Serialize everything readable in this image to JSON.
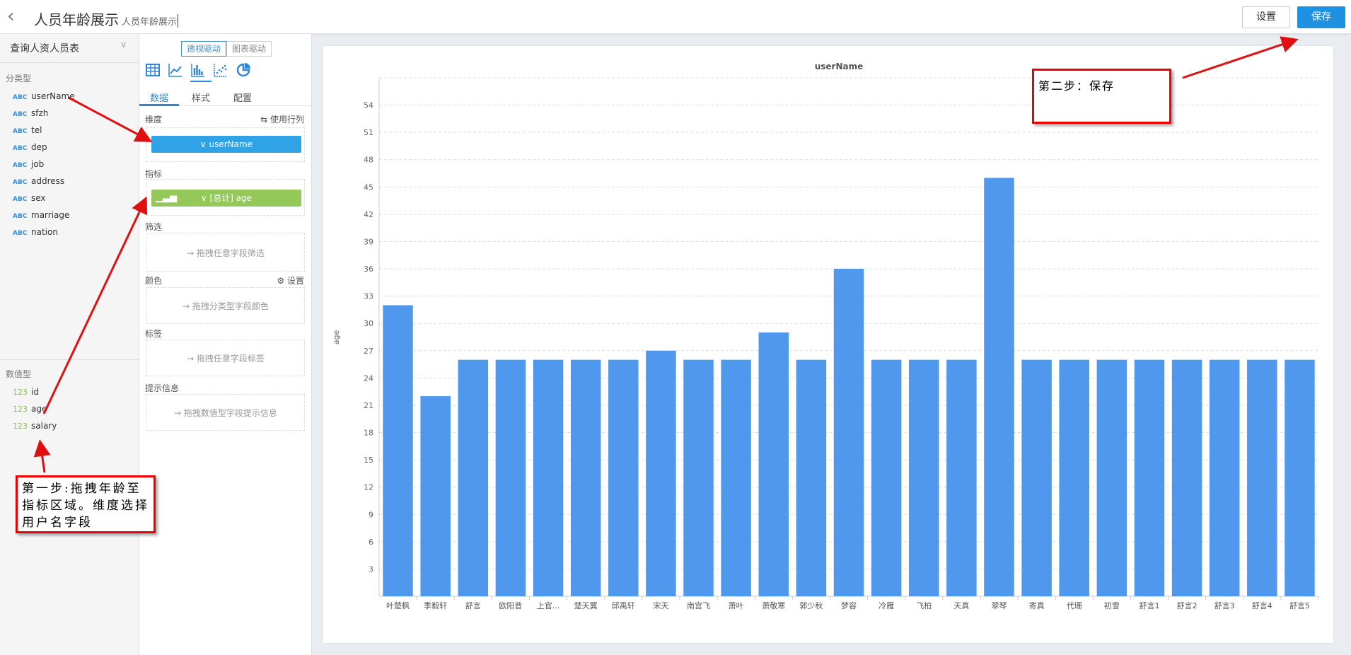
{
  "header": {
    "title": "人员年龄展示",
    "subtitle": "人员年龄展示",
    "settings_label": "设置",
    "save_label": "保存"
  },
  "left": {
    "dataset": "查询人资人员表",
    "category_section": "分类型",
    "category_type": "ABC",
    "category_fields": [
      "userName",
      "sfzh",
      "tel",
      "dep",
      "job",
      "address",
      "sex",
      "marriage",
      "nation"
    ],
    "numeric_section": "数值型",
    "numeric_type": "123",
    "numeric_fields": [
      "id",
      "age",
      "salary"
    ]
  },
  "mid": {
    "modes": [
      "透视驱动",
      "图表驱动"
    ],
    "chart_types": [
      "table-icon",
      "line-chart-icon",
      "bar-chart-icon",
      "scatter-icon",
      "pie-chart-icon"
    ],
    "tabs": [
      "数据",
      "样式",
      "配置"
    ],
    "dimension_label": "维度",
    "use_row_col": "⇆ 使用行列",
    "dimension_value": "∨ userName",
    "measure_label": "指标",
    "measure_value": "∨ [总计] age",
    "filter_label": "筛选",
    "filter_hint": "→ 拖拽任意字段筛选",
    "color_label": "颜色",
    "color_settings": "设置",
    "color_hint": "→ 拖拽分类型字段颜色",
    "tag_label": "标签",
    "tag_hint": "→ 拖拽任意字段标签",
    "tooltip_label": "提示信息",
    "tooltip_hint": "→ 拖拽数值型字段提示信息",
    "colors": {
      "dimension": "#2fa3e6",
      "measure": "#94c95a"
    }
  },
  "chart_data": {
    "type": "bar",
    "title": "userName",
    "xlabel": "",
    "ylabel": "age",
    "ylim": [
      0,
      57
    ],
    "yticks": [
      3,
      6,
      9,
      12,
      15,
      18,
      21,
      24,
      27,
      30,
      33,
      36,
      39,
      42,
      45,
      48,
      51,
      54
    ],
    "grid": true,
    "bar_color": "#5098ee",
    "categories": [
      "叶楚枫",
      "季毅轩",
      "舒言",
      "欧阳昔",
      "上官...",
      "楚天翼",
      "邱禹轩",
      "宋天",
      "南宫飞",
      "萧叶",
      "萧敬寒",
      "郭少秋",
      "梦容",
      "冷雁",
      "飞柏",
      "天真",
      "翠琴",
      "寄真",
      "代珊",
      "初雪",
      "舒言1",
      "舒言2",
      "舒言3",
      "舒言4",
      "舒言5"
    ],
    "values": [
      32,
      22,
      26,
      26,
      26,
      26,
      26,
      27,
      26,
      26,
      29,
      26,
      36,
      26,
      26,
      26,
      46,
      26,
      26,
      26,
      26,
      26,
      26,
      26,
      26
    ]
  },
  "annotations": {
    "step1": "第一步:拖拽年龄至指标区域。维度选择用户名字段",
    "step2": "第二步：保存"
  }
}
